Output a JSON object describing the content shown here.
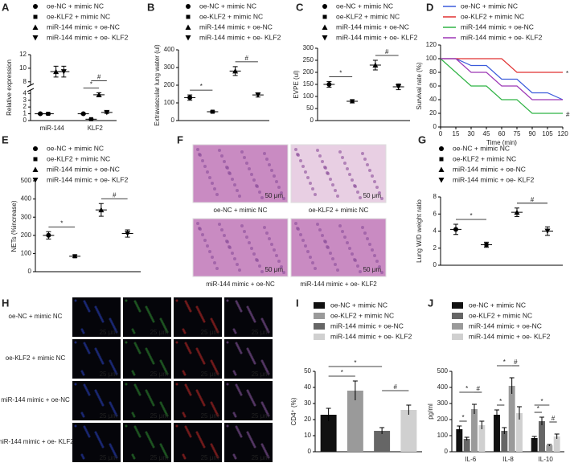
{
  "chart_data": [
    {
      "label": "A",
      "type": "dot",
      "ylabel": "Relative expression",
      "categories": [
        "miR-144",
        "KLF2"
      ],
      "series": [
        {
          "name": "oe-NC + mimic NC",
          "marker": "circle",
          "values": [
            1.0,
            1.0
          ],
          "errors": [
            0.1,
            0.1
          ]
        },
        {
          "name": "oe-KLF2 + mimic NC",
          "marker": "square",
          "values": [
            1.0,
            0.2
          ],
          "errors": [
            0.1,
            0.05
          ]
        },
        {
          "name": "miR-144 mimic + oe-NC",
          "marker": "triangle-up",
          "values": [
            9.5,
            3.8
          ],
          "errors": [
            0.8,
            0.3
          ]
        },
        {
          "name": "miR-144 mimic + oe- KLF2",
          "marker": "triangle-down",
          "values": [
            9.5,
            1.2
          ],
          "errors": [
            0.8,
            0.15
          ]
        }
      ],
      "ylim": [
        0,
        12
      ],
      "ybreak": [
        4.5,
        7.5
      ],
      "yticks": [
        0,
        1,
        2,
        3,
        4,
        8,
        10,
        12
      ],
      "annotations": [
        {
          "text": "*",
          "category": 1,
          "between": [
            0,
            2
          ]
        },
        {
          "text": "#",
          "category": 1,
          "between": [
            1,
            3
          ]
        }
      ]
    },
    {
      "label": "B",
      "type": "dot",
      "ylabel": "Extravascular lung water (ul)",
      "series": [
        {
          "name": "oe-NC + mimic NC",
          "marker": "circle",
          "values": [
            130
          ],
          "errors": [
            15
          ]
        },
        {
          "name": "oe-KLF2 + mimic NC",
          "marker": "square",
          "values": [
            50
          ],
          "errors": [
            5
          ]
        },
        {
          "name": "miR-144 mimic + oe-NC",
          "marker": "triangle-up",
          "values": [
            280
          ],
          "errors": [
            25
          ]
        },
        {
          "name": "miR-144 mimic + oe- KLF2",
          "marker": "triangle-down",
          "values": [
            145
          ],
          "errors": [
            12
          ]
        }
      ],
      "ylim": [
        0,
        400
      ],
      "yticks": [
        0,
        100,
        200,
        300,
        400
      ],
      "annotations": [
        {
          "text": "*",
          "between": [
            0,
            1
          ]
        },
        {
          "text": "#",
          "between": [
            2,
            3
          ]
        }
      ]
    },
    {
      "label": "C",
      "type": "dot",
      "ylabel": "EVPE (ul)",
      "series": [
        {
          "name": "oe-NC + mimic NC",
          "marker": "circle",
          "values": [
            150
          ],
          "errors": [
            12
          ]
        },
        {
          "name": "oe-KLF2 + mimic NC",
          "marker": "square",
          "values": [
            80
          ],
          "errors": [
            7
          ]
        },
        {
          "name": "miR-144 mimic + oe-NC",
          "marker": "triangle-up",
          "values": [
            230
          ],
          "errors": [
            20
          ]
        },
        {
          "name": "miR-144 mimic + oe- KLF2",
          "marker": "triangle-down",
          "values": [
            140
          ],
          "errors": [
            12
          ]
        }
      ],
      "ylim": [
        0,
        300
      ],
      "yticks": [
        0,
        50,
        100,
        150,
        200,
        250,
        300
      ],
      "annotations": [
        {
          "text": "*",
          "between": [
            0,
            1
          ]
        },
        {
          "text": "#",
          "between": [
            2,
            3
          ]
        }
      ]
    },
    {
      "label": "D",
      "type": "line",
      "ylabel": "Survival rate (%)",
      "xlabel": "Time (min)",
      "x": [
        0,
        15,
        30,
        45,
        60,
        75,
        90,
        105,
        120
      ],
      "series": [
        {
          "name": "oe-NC + mimic NC",
          "color": "#3b5bdb",
          "values": [
            100,
            100,
            90,
            90,
            70,
            70,
            50,
            50,
            40
          ]
        },
        {
          "name": "oe-KLF2 + mimic NC",
          "color": "#e03131",
          "values": [
            100,
            100,
            100,
            100,
            100,
            80,
            80,
            80,
            80
          ]
        },
        {
          "name": "miR-144 mimic + oe-NC",
          "color": "#2fb344",
          "values": [
            100,
            80,
            60,
            60,
            40,
            40,
            20,
            20,
            20
          ]
        },
        {
          "name": "miR-144 mimic + oe- KLF2",
          "color": "#9c36b5",
          "values": [
            100,
            100,
            80,
            80,
            60,
            60,
            40,
            40,
            40
          ]
        }
      ],
      "xlim": [
        0,
        120
      ],
      "xticks": [
        0,
        15,
        30,
        45,
        60,
        75,
        90,
        105,
        120
      ],
      "ylim": [
        0,
        120
      ],
      "yticks": [
        0,
        20,
        40,
        60,
        80,
        100,
        120
      ],
      "annotations": [
        {
          "text": "*",
          "series": 1
        },
        {
          "text": "#",
          "series": 2
        }
      ]
    },
    {
      "label": "E",
      "type": "dot",
      "ylabel": "NETs (%increase)",
      "series": [
        {
          "name": "oe-NC + mimic NC",
          "marker": "circle",
          "values": [
            200
          ],
          "errors": [
            20
          ]
        },
        {
          "name": "oe-KLF2 + mimic NC",
          "marker": "square",
          "values": [
            85
          ],
          "errors": [
            8
          ]
        },
        {
          "name": "miR-144 mimic + oe-NC",
          "marker": "triangle-up",
          "values": [
            340
          ],
          "errors": [
            35
          ]
        },
        {
          "name": "miR-144 mimic + oe- KLF2",
          "marker": "triangle-down",
          "values": [
            210
          ],
          "errors": [
            20
          ]
        }
      ],
      "ylim": [
        0,
        500
      ],
      "yticks": [
        0,
        100,
        200,
        300,
        400,
        500
      ],
      "annotations": [
        {
          "text": "*",
          "between": [
            0,
            1
          ]
        },
        {
          "text": "#",
          "between": [
            2,
            3
          ]
        }
      ]
    },
    {
      "label": "G",
      "type": "dot",
      "ylabel": "Lung W/D weight ratio",
      "series": [
        {
          "name": "oe-NC + mimic NC",
          "marker": "circle",
          "values": [
            4.2
          ],
          "errors": [
            0.6
          ]
        },
        {
          "name": "oe-KLF2 + mimic NC",
          "marker": "square",
          "values": [
            2.4
          ],
          "errors": [
            0.3
          ]
        },
        {
          "name": "miR-144 mimic + oe-NC",
          "marker": "triangle-up",
          "values": [
            6.2
          ],
          "errors": [
            0.5
          ]
        },
        {
          "name": "miR-144 mimic + oe- KLF2",
          "marker": "triangle-down",
          "values": [
            4.0
          ],
          "errors": [
            0.5
          ]
        }
      ],
      "ylim": [
        0,
        8
      ],
      "yticks": [
        0,
        2,
        4,
        6,
        8
      ],
      "annotations": [
        {
          "text": "*",
          "between": [
            0,
            1
          ]
        },
        {
          "text": "#",
          "between": [
            2,
            3
          ]
        }
      ]
    },
    {
      "label": "I",
      "type": "bar",
      "ylabel": "CD4⁺ (%)",
      "series": [
        {
          "name": "oe-NC + mimic NC",
          "color": "#111111",
          "values": [
            23
          ],
          "errors": [
            4
          ]
        },
        {
          "name": "oe-KLF2 + mimic NC",
          "color": "#9a9a9a",
          "values": [
            38
          ],
          "errors": [
            6
          ]
        },
        {
          "name": "miR-144 mimic + oe-NC",
          "color": "#666666",
          "values": [
            13
          ],
          "errors": [
            2
          ]
        },
        {
          "name": "miR-144 mimic + oe- KLF2",
          "color": "#d0d0d0",
          "values": [
            26
          ],
          "errors": [
            3
          ]
        }
      ],
      "ylim": [
        0,
        50
      ],
      "yticks": [
        0,
        10,
        20,
        30,
        40,
        50
      ],
      "annotations": [
        {
          "text": "*",
          "between": [
            0,
            1
          ]
        },
        {
          "text": "*",
          "between": [
            0,
            2
          ]
        },
        {
          "text": "#",
          "between": [
            2,
            3
          ]
        }
      ]
    },
    {
      "label": "J",
      "type": "bar",
      "ylabel": "pg/ml",
      "categories": [
        "IL-6",
        "IL-8",
        "IL-10"
      ],
      "series": [
        {
          "name": "oe-NC + mimic NC",
          "color": "#111111",
          "values": [
            140,
            230,
            85
          ],
          "errors": [
            20,
            30,
            10
          ]
        },
        {
          "name": "oe-KLF2 + mimic NC",
          "color": "#666666",
          "values": [
            80,
            130,
            190
          ],
          "errors": [
            10,
            20,
            25
          ]
        },
        {
          "name": "miR-144 mimic + oe-NC",
          "color": "#9a9a9a",
          "values": [
            265,
            410,
            40
          ],
          "errors": [
            30,
            50,
            5
          ]
        },
        {
          "name": "miR-144 mimic + oe- KLF2",
          "color": "#d0d0d0",
          "values": [
            165,
            240,
            95
          ],
          "errors": [
            25,
            40,
            15
          ]
        }
      ],
      "ylim": [
        0,
        500
      ],
      "yticks": [
        0,
        100,
        200,
        300,
        400,
        500
      ],
      "annotations": [
        {
          "text": "*",
          "category": 0,
          "between": [
            0,
            1
          ]
        },
        {
          "text": "*",
          "category": 0,
          "between": [
            0,
            2
          ]
        },
        {
          "text": "#",
          "category": 0,
          "between": [
            2,
            3
          ]
        },
        {
          "text": "*",
          "category": 1,
          "between": [
            0,
            1
          ]
        },
        {
          "text": "*",
          "category": 1,
          "between": [
            0,
            2
          ]
        },
        {
          "text": "#",
          "category": 1,
          "between": [
            2,
            3
          ]
        },
        {
          "text": "*",
          "category": 2,
          "between": [
            0,
            1
          ]
        },
        {
          "text": "*",
          "category": 2,
          "between": [
            0,
            2
          ]
        },
        {
          "text": "#",
          "category": 2,
          "between": [
            2,
            3
          ]
        }
      ]
    }
  ],
  "image_panels": [
    {
      "label": "F",
      "captions": [
        "oe-NC + mimic NC",
        "oe-KLF2 + mimic NC",
        "miR-144 mimic + oe-NC",
        "miR-144 mimic + oe- KLF2"
      ],
      "scale": "50 μm"
    },
    {
      "label": "H",
      "rows": [
        "oe-NC + mimic NC",
        "oe-KLF2 + mimic NC",
        "miR-144 mimic + oe-NC",
        "miR-144 mimic + oe- KLF2"
      ],
      "scale": "25 μm"
    }
  ]
}
